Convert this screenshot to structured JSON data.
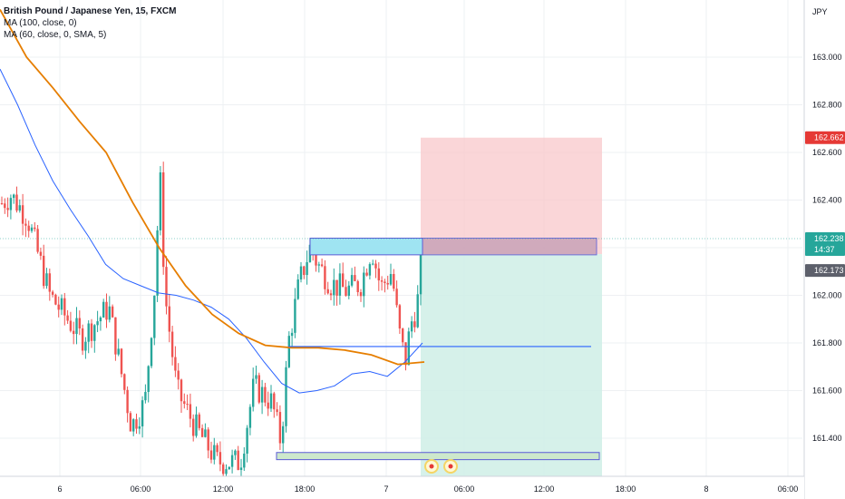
{
  "legend": {
    "title": "British Pound / Japanese Yen, 15, FXCM",
    "ma1": "MA (100, close, 0)",
    "ma2": "MA (60, close, 0, SMA, 5)"
  },
  "colors": {
    "up": "#26a69a",
    "down": "#ef5350",
    "ma100": "#2962ff",
    "ma60": "#e67e00",
    "stop_zone": "#f8c8cb",
    "target_zone": "#cfeee6",
    "resistance_box": "#9fe4f2",
    "support_box": "#cde8cc",
    "stop_badge": "#e53935",
    "last_price_badge": "#26a69a",
    "entry_badge": "#5d606b"
  },
  "chart_data": {
    "type": "candlestick",
    "symbol": "British Pound / Japanese Yen, 15, FXCM",
    "currency_label": "JPY",
    "y_ticks": [
      161.4,
      161.6,
      161.8,
      162.0,
      162.2,
      162.4,
      162.6,
      162.8,
      163.0
    ],
    "y_tick_labels": [
      "161.400",
      "161.600",
      "161.800",
      "162.000",
      "162.200",
      "162.400",
      "162.600",
      "162.800",
      "163.000"
    ],
    "ylim": [
      161.26,
      163.1
    ],
    "x_ticks": [
      "6",
      "06:00",
      "12:00",
      "18:00",
      "7",
      "06:00",
      "12:00",
      "18:00",
      "8",
      "06:00"
    ],
    "price_badges": {
      "stop": "162.662",
      "last": "162.238",
      "countdown": "14:37",
      "entry": "162.173"
    },
    "position": {
      "type": "short",
      "entry": 162.173,
      "stop": 162.662,
      "target": 161.26
    },
    "ma100_values": [
      162.95,
      162.8,
      162.63,
      162.48,
      162.36,
      162.25,
      162.13,
      162.07,
      162.04,
      162.01,
      162.0,
      161.98,
      161.95,
      161.9,
      161.82,
      161.72,
      161.63,
      161.59,
      161.6,
      161.62,
      161.67,
      161.68,
      161.66,
      161.72,
      161.8
    ],
    "ma60_values": [
      163.2,
      163.0,
      162.87,
      162.73,
      162.6,
      162.39,
      162.2,
      162.04,
      161.92,
      161.84,
      161.79,
      161.78,
      161.78,
      161.77,
      161.75,
      161.71,
      161.72
    ],
    "annotation_lines": [
      {
        "label": "horizontal line",
        "value": 161.785
      }
    ]
  }
}
